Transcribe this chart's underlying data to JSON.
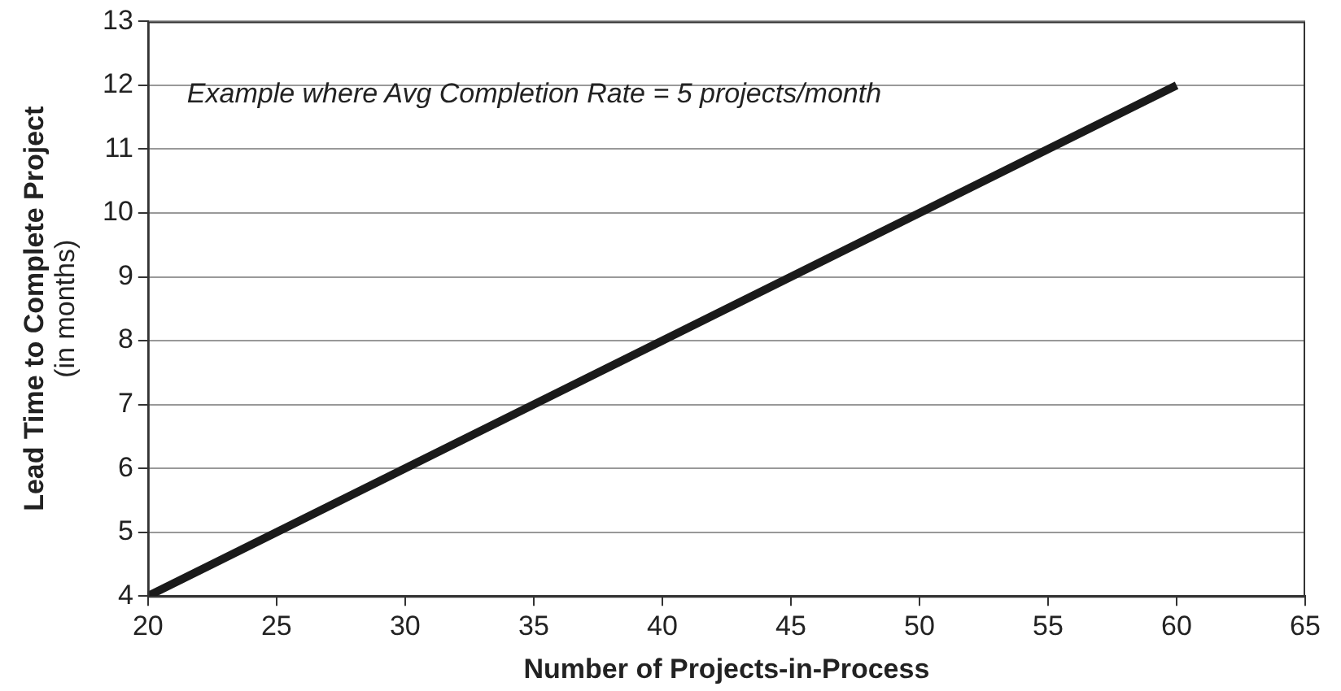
{
  "chart_data": {
    "type": "line",
    "xlabel": "Number of Projects-in-Process",
    "ylabel": "Lead Time to Complete Project\n(in months)",
    "annotations": [
      "Example where Avg Completion Rate = 5 projects/month"
    ],
    "x": [
      20,
      60
    ],
    "series": [
      {
        "color": "#1a1a1a",
        "values": [
          4,
          12
        ]
      }
    ],
    "xlim": [
      20,
      65
    ],
    "xticks": [
      20,
      25,
      30,
      35,
      40,
      45,
      50,
      55,
      60,
      65
    ],
    "ylim": [
      4,
      13
    ],
    "yticks": [
      4,
      5,
      6,
      7,
      8,
      9,
      10,
      11,
      12,
      13
    ],
    "grid": "y",
    "legend": false,
    "marker": "none",
    "line_style": "solid"
  }
}
